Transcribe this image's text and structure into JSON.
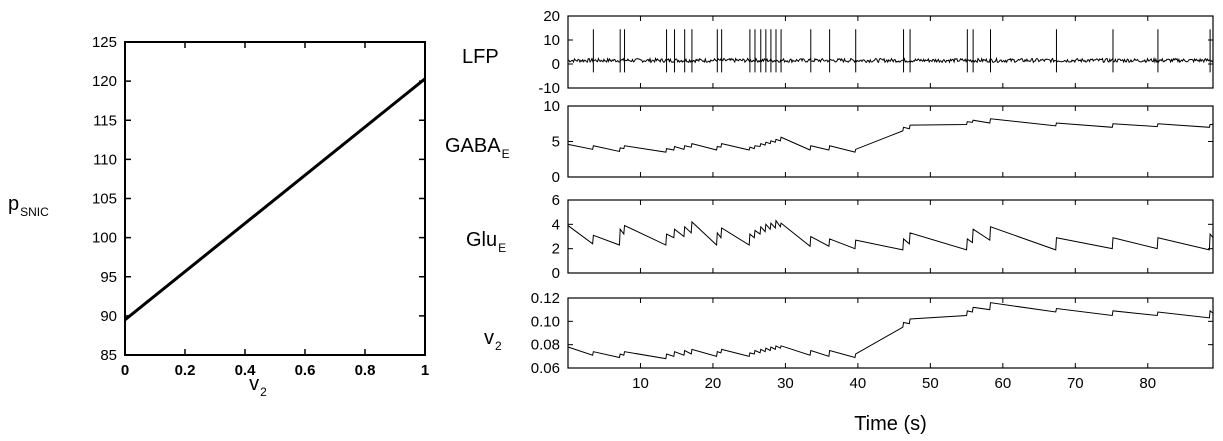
{
  "chart_data": [
    {
      "type": "line",
      "xlabel": "v",
      "xlabel_sub": "2",
      "ylabel": "p",
      "ylabel_sub": "SNIC",
      "xlim": [
        0,
        1
      ],
      "ylim": [
        85,
        125
      ],
      "xticks": [
        "0",
        "0.2",
        "0.4",
        "0.6",
        "0.8",
        "1"
      ],
      "yticks": [
        "85",
        "90",
        "95",
        "100",
        "105",
        "110",
        "115",
        "120",
        "125"
      ],
      "series": [
        {
          "x": [
            0,
            1
          ],
          "y": [
            89.5,
            120.3
          ]
        }
      ]
    },
    {
      "type": "line",
      "ylabel": "LFP",
      "ylim": [
        -10,
        20
      ],
      "xlim": [
        0,
        89
      ],
      "yticks": [
        "-10",
        "0",
        "10",
        "20"
      ],
      "baseline": 1.5,
      "spike_times": [
        3.5,
        7.2,
        7.8,
        13.6,
        14.7,
        16.1,
        17.1,
        20.6,
        21.2,
        25.1,
        25.8,
        26.6,
        27.3,
        28.0,
        28.7,
        29.4,
        33.5,
        36.1,
        39.7,
        46.3,
        47.2,
        55.1,
        55.9,
        58.3,
        67.4,
        75.2,
        81.4,
        88.6
      ]
    },
    {
      "type": "line",
      "ylabel": "GABA",
      "ylabel_sub": "E",
      "ylim": [
        0,
        10
      ],
      "xlim": [
        0,
        89
      ],
      "yticks": [
        "0",
        "5",
        "10"
      ],
      "x": [
        0,
        3.4,
        3.5,
        7.1,
        7.2,
        7.7,
        7.8,
        13.5,
        13.6,
        14.6,
        14.7,
        16.0,
        16.1,
        17.0,
        17.1,
        20.5,
        20.6,
        21.1,
        21.2,
        25.0,
        25.1,
        25.7,
        25.8,
        26.5,
        26.6,
        27.2,
        27.3,
        27.9,
        28.0,
        28.6,
        28.7,
        29.3,
        29.4,
        33.4,
        33.5,
        36.0,
        36.1,
        39.6,
        39.7,
        46.2,
        46.3,
        47.1,
        47.2,
        55.0,
        55.1,
        55.8,
        55.9,
        58.2,
        58.3,
        67.3,
        67.4,
        75.1,
        75.2,
        81.3,
        81.4,
        88.5,
        88.6,
        89
      ],
      "y": [
        4.6,
        3.9,
        4.4,
        3.6,
        4.1,
        4.0,
        4.4,
        3.5,
        4.0,
        3.8,
        4.3,
        3.9,
        4.4,
        4.2,
        4.7,
        3.8,
        4.3,
        4.2,
        4.7,
        3.8,
        4.2,
        4.0,
        4.4,
        4.3,
        4.7,
        4.5,
        4.9,
        4.7,
        5.1,
        4.9,
        5.3,
        5.1,
        5.6,
        3.8,
        4.4,
        3.8,
        4.4,
        3.5,
        3.9,
        6.5,
        7.0,
        6.8,
        7.3,
        7.4,
        7.8,
        7.7,
        8.0,
        7.6,
        8.2,
        7.2,
        7.6,
        7.0,
        7.5,
        7.1,
        7.5,
        7.0,
        7.4,
        7.4
      ]
    },
    {
      "type": "line",
      "ylabel": "Glu",
      "ylabel_sub": "E",
      "ylim": [
        0,
        6
      ],
      "xlim": [
        0,
        89
      ],
      "yticks": [
        "0",
        "2",
        "4",
        "6"
      ],
      "x": [
        0,
        3.4,
        3.5,
        7.1,
        7.2,
        7.7,
        7.8,
        13.5,
        13.6,
        14.6,
        14.7,
        16.0,
        16.1,
        17.0,
        17.1,
        20.5,
        20.6,
        21.1,
        21.2,
        25.0,
        25.1,
        25.7,
        25.8,
        26.5,
        26.6,
        27.2,
        27.3,
        27.9,
        28.0,
        28.6,
        28.7,
        29.3,
        29.4,
        33.4,
        33.5,
        36.0,
        36.1,
        39.6,
        39.7,
        46.2,
        46.3,
        47.1,
        47.2,
        55.0,
        55.1,
        55.8,
        55.9,
        58.2,
        58.3,
        67.3,
        67.4,
        75.1,
        75.2,
        81.3,
        81.4,
        88.5,
        88.6,
        89
      ],
      "y": [
        3.9,
        2.4,
        3.1,
        2.3,
        3.6,
        3.2,
        3.9,
        2.3,
        3.2,
        2.9,
        3.6,
        3.0,
        3.8,
        3.3,
        4.2,
        2.3,
        3.3,
        2.9,
        3.7,
        2.3,
        3.2,
        2.9,
        3.5,
        3.2,
        3.8,
        3.4,
        4.0,
        3.6,
        4.1,
        3.7,
        4.3,
        3.8,
        4.1,
        2.2,
        3.0,
        2.2,
        2.8,
        2.0,
        2.7,
        1.9,
        2.8,
        2.4,
        3.3,
        1.9,
        2.8,
        2.5,
        3.6,
        2.7,
        3.8,
        1.9,
        2.9,
        2.0,
        2.9,
        2.0,
        2.9,
        1.9,
        3.2,
        2.9
      ]
    },
    {
      "type": "line",
      "ylabel": "v",
      "ylabel_sub": "2",
      "xlabel": "Time (s)",
      "ylim": [
        0.06,
        0.12
      ],
      "xlim": [
        0,
        89
      ],
      "yticks": [
        "0.06",
        "0.08",
        "0.10",
        "0.12"
      ],
      "xticks": [
        "10",
        "20",
        "30",
        "40",
        "50",
        "60",
        "70",
        "80"
      ],
      "x": [
        0,
        3.4,
        3.5,
        7.1,
        7.2,
        7.7,
        7.8,
        13.5,
        13.6,
        14.6,
        14.7,
        16.0,
        16.1,
        17.0,
        17.1,
        20.5,
        20.6,
        21.1,
        21.2,
        25.0,
        25.1,
        25.7,
        25.8,
        26.5,
        26.6,
        27.2,
        27.3,
        27.9,
        28.0,
        28.6,
        28.7,
        29.3,
        29.4,
        33.4,
        33.5,
        36.0,
        36.1,
        39.6,
        39.7,
        46.2,
        46.3,
        47.1,
        47.2,
        55.0,
        55.1,
        55.8,
        55.9,
        58.2,
        58.3,
        67.3,
        67.4,
        75.1,
        75.2,
        81.3,
        81.4,
        88.5,
        88.6,
        89
      ],
      "y": [
        0.078,
        0.071,
        0.074,
        0.069,
        0.072,
        0.071,
        0.074,
        0.068,
        0.072,
        0.07,
        0.074,
        0.071,
        0.075,
        0.072,
        0.076,
        0.07,
        0.074,
        0.073,
        0.076,
        0.07,
        0.073,
        0.072,
        0.075,
        0.073,
        0.076,
        0.074,
        0.077,
        0.075,
        0.078,
        0.076,
        0.079,
        0.077,
        0.079,
        0.071,
        0.075,
        0.07,
        0.075,
        0.069,
        0.072,
        0.095,
        0.099,
        0.098,
        0.102,
        0.105,
        0.109,
        0.108,
        0.112,
        0.11,
        0.116,
        0.108,
        0.111,
        0.105,
        0.109,
        0.105,
        0.108,
        0.103,
        0.109,
        0.107
      ]
    }
  ]
}
